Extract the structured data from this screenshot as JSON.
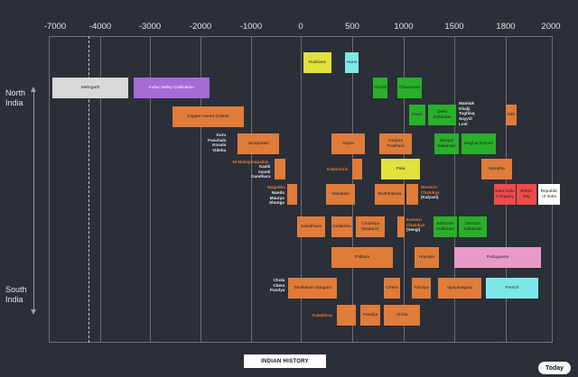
{
  "axis": {
    "ticks": [
      "-7000",
      "-4000",
      "-3000",
      "-2000",
      "-1000",
      "0",
      "500",
      "1000",
      "1500",
      "1800",
      "2000"
    ]
  },
  "regions": {
    "north": "North\nIndia",
    "south": "South\nIndia"
  },
  "blocks": {
    "mehrgarh": "Mehrgarh",
    "indus": "Indus Valley Civilization",
    "copper": "Copper Hoard Culture",
    "kushans": "Kushans",
    "huns": "Huns",
    "gurjara": "Gurjara Pratihara",
    "ghaznavid": "Ghaznavid",
    "janapadas": "Janapadas",
    "gupta": "Gupta",
    "pala": "Pala",
    "delhi": "Delhi Sultanate",
    "bengal": "Bengal Sultanate",
    "mughal": "Mughal Empire",
    "sikh": "Sikh",
    "ghurid": "Ghurid",
    "gauri": "Gauri",
    "maratha": "Maratha",
    "eic": "East India Company",
    "raj": "British Raj",
    "republic": "Republic of India",
    "vakataka": "Vakataka",
    "rashtrakuta": "Rashtrakuta",
    "chalukya_w": "Chalukya",
    "satvahana": "Satvahana",
    "kadamba": "Kadamba",
    "chalukya_badami": "Chalukya (Badami)",
    "bahmani": "Bahmani Sultanate",
    "deccan": "Deccan Sultanate",
    "pallava": "Pallava",
    "hoysala": "Hoysala",
    "portuguese": "Portuguese",
    "tamilakam": "Tamilakam Sangam",
    "chera": "Chera",
    "pandya": "Pandya",
    "vijayanagara": "Vijayanagara",
    "french": "French",
    "pandya2": "Pandya",
    "chola": "Chola"
  },
  "labels": {
    "kuru": "Kuru\nPanchala\nKosala\nVideha",
    "mahajanapadas": "16 Mahajanapadas",
    "kashi": "Kashi\nAvanti\nGandhara",
    "magadha": "Magadha",
    "nanda": "Nanda\nMaurya\nShunga",
    "kalachuris": "Kalachuris",
    "western_chalukya": "Western\nChalukya",
    "kalyani": "(Kalyani)",
    "mamluk": "Mamluk\nKhalji\nTughlaq\nSayyid\nLodi",
    "eastern_chalukya": "Eastern\nChalukya",
    "vengi": "(Vengi)",
    "chola_chera_pandya": "Chola\nChera\nPandya",
    "kalabhras": "Kalabhras"
  },
  "footer": {
    "title": "INDIAN HISTORY",
    "today": "Today"
  }
}
